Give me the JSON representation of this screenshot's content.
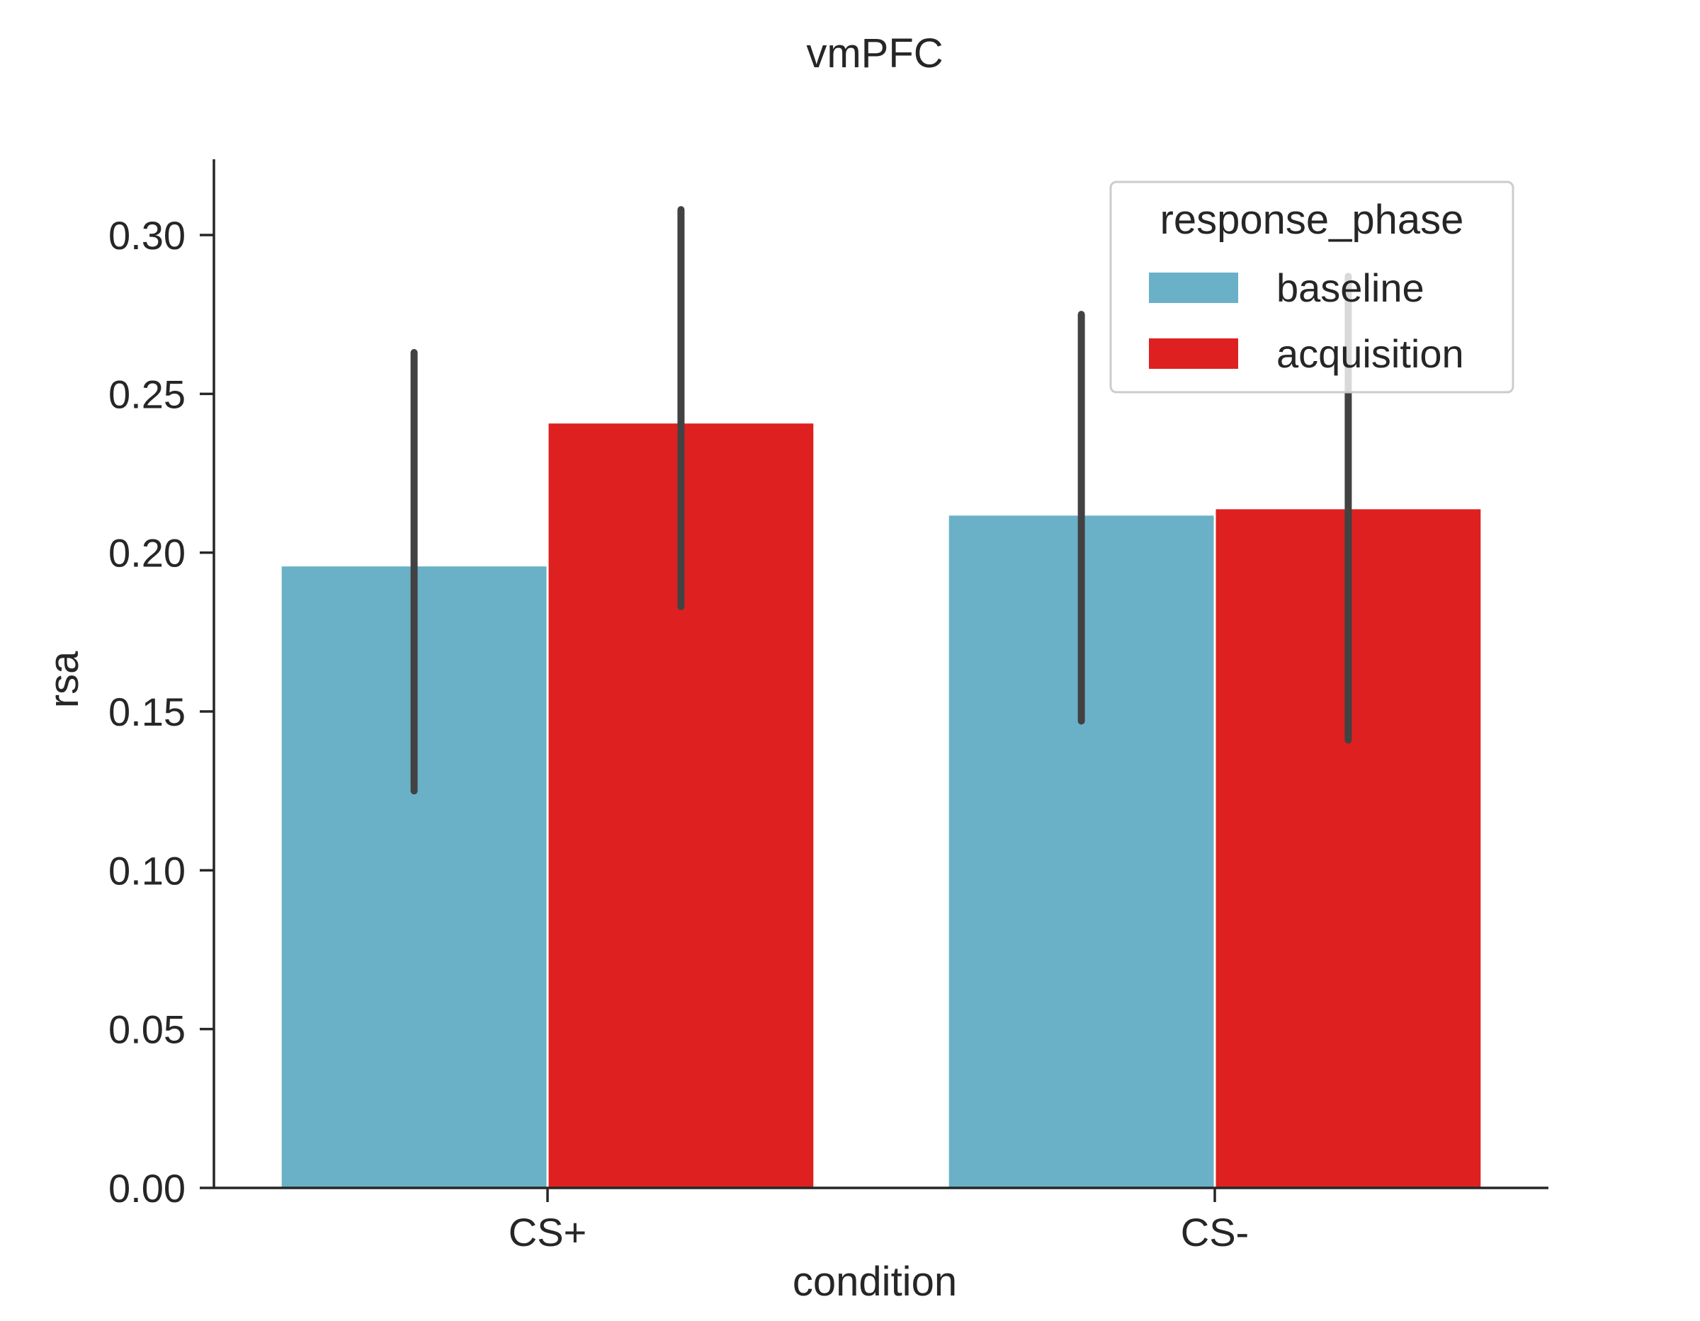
{
  "chart_data": {
    "type": "bar",
    "title": "vmPFC",
    "xlabel": "condition",
    "ylabel": "rsa",
    "categories": [
      "CS+",
      "CS-"
    ],
    "ylim": [
      0,
      0.3241
    ],
    "yticks": [
      0.0,
      0.05,
      0.1,
      0.15,
      0.2,
      0.25,
      0.3
    ],
    "ytick_labels": [
      "0.00",
      "0.05",
      "0.10",
      "0.15",
      "0.20",
      "0.25",
      "0.30"
    ],
    "grid": false,
    "legend": {
      "title": "response_phase",
      "placement": "top-right"
    },
    "series": [
      {
        "name": "baseline",
        "color": "#6ab1c8",
        "values": [
          0.196,
          0.212
        ],
        "ci_low": [
          0.125,
          0.147
        ],
        "ci_high": [
          0.263,
          0.275
        ]
      },
      {
        "name": "acquisition",
        "color": "#df2020",
        "values": [
          0.241,
          0.214
        ],
        "ci_low": [
          0.183,
          0.141
        ],
        "ci_high": [
          0.308,
          0.287
        ]
      }
    ],
    "error_bar_color": "#424242"
  }
}
